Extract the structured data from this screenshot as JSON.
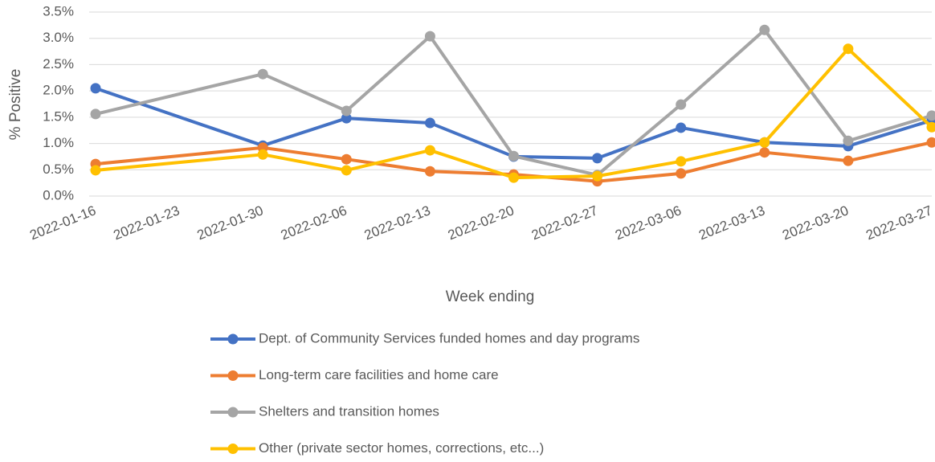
{
  "chart_data": {
    "type": "line",
    "y_label": "% Positive",
    "x_label": "Week ending",
    "x": [
      "2022-01-16",
      "2022-01-30",
      "2022-02-06",
      "2022-02-13",
      "2022-02-20",
      "2022-02-27",
      "2022-03-06",
      "2022-03-13",
      "2022-03-20",
      "2022-03-27"
    ],
    "xlim": [
      "2022-01-16",
      "2022-03-27"
    ],
    "xticks": [
      "2022-01-16",
      "2022-01-23",
      "2022-01-30",
      "2022-02-06",
      "2022-02-13",
      "2022-02-20",
      "2022-02-27",
      "2022-03-06",
      "2022-03-13",
      "2022-03-20",
      "2022-03-27"
    ],
    "ylim": [
      0,
      3.5
    ],
    "yticks": [
      {
        "value": 0,
        "label": "0.0%"
      },
      {
        "value": 0.5,
        "label": "0.5%"
      },
      {
        "value": 1,
        "label": "1.0%"
      },
      {
        "value": 1.5,
        "label": "1.5%"
      },
      {
        "value": 2,
        "label": "2.0%"
      },
      {
        "value": 2.5,
        "label": "2.5%"
      },
      {
        "value": 3,
        "label": "3.0%"
      },
      {
        "value": 3.5,
        "label": "3.5%"
      }
    ],
    "grid": true,
    "legend": "bottom",
    "series": [
      {
        "name": "Dept. of Community Services funded homes and day programs",
        "color": "#4472c4",
        "values": [
          2.05,
          0.96,
          1.48,
          1.39,
          0.75,
          0.72,
          1.3,
          1.02,
          0.95,
          1.44
        ]
      },
      {
        "name": "Long-term care facilities and home care",
        "color": "#ed7d31",
        "values": [
          0.61,
          0.92,
          0.7,
          0.47,
          0.41,
          0.28,
          0.43,
          0.83,
          0.67,
          1.02
        ]
      },
      {
        "name": "Shelters and transition homes",
        "color": "#a5a5a5",
        "values": [
          1.56,
          2.32,
          1.62,
          3.04,
          0.76,
          0.4,
          1.74,
          3.16,
          1.05,
          1.53
        ]
      },
      {
        "name": "Other (private sector homes, corrections, etc...)",
        "color": "#ffc000",
        "values": [
          0.49,
          0.79,
          0.49,
          0.87,
          0.35,
          0.38,
          0.66,
          1.02,
          2.8,
          1.31
        ]
      }
    ]
  }
}
